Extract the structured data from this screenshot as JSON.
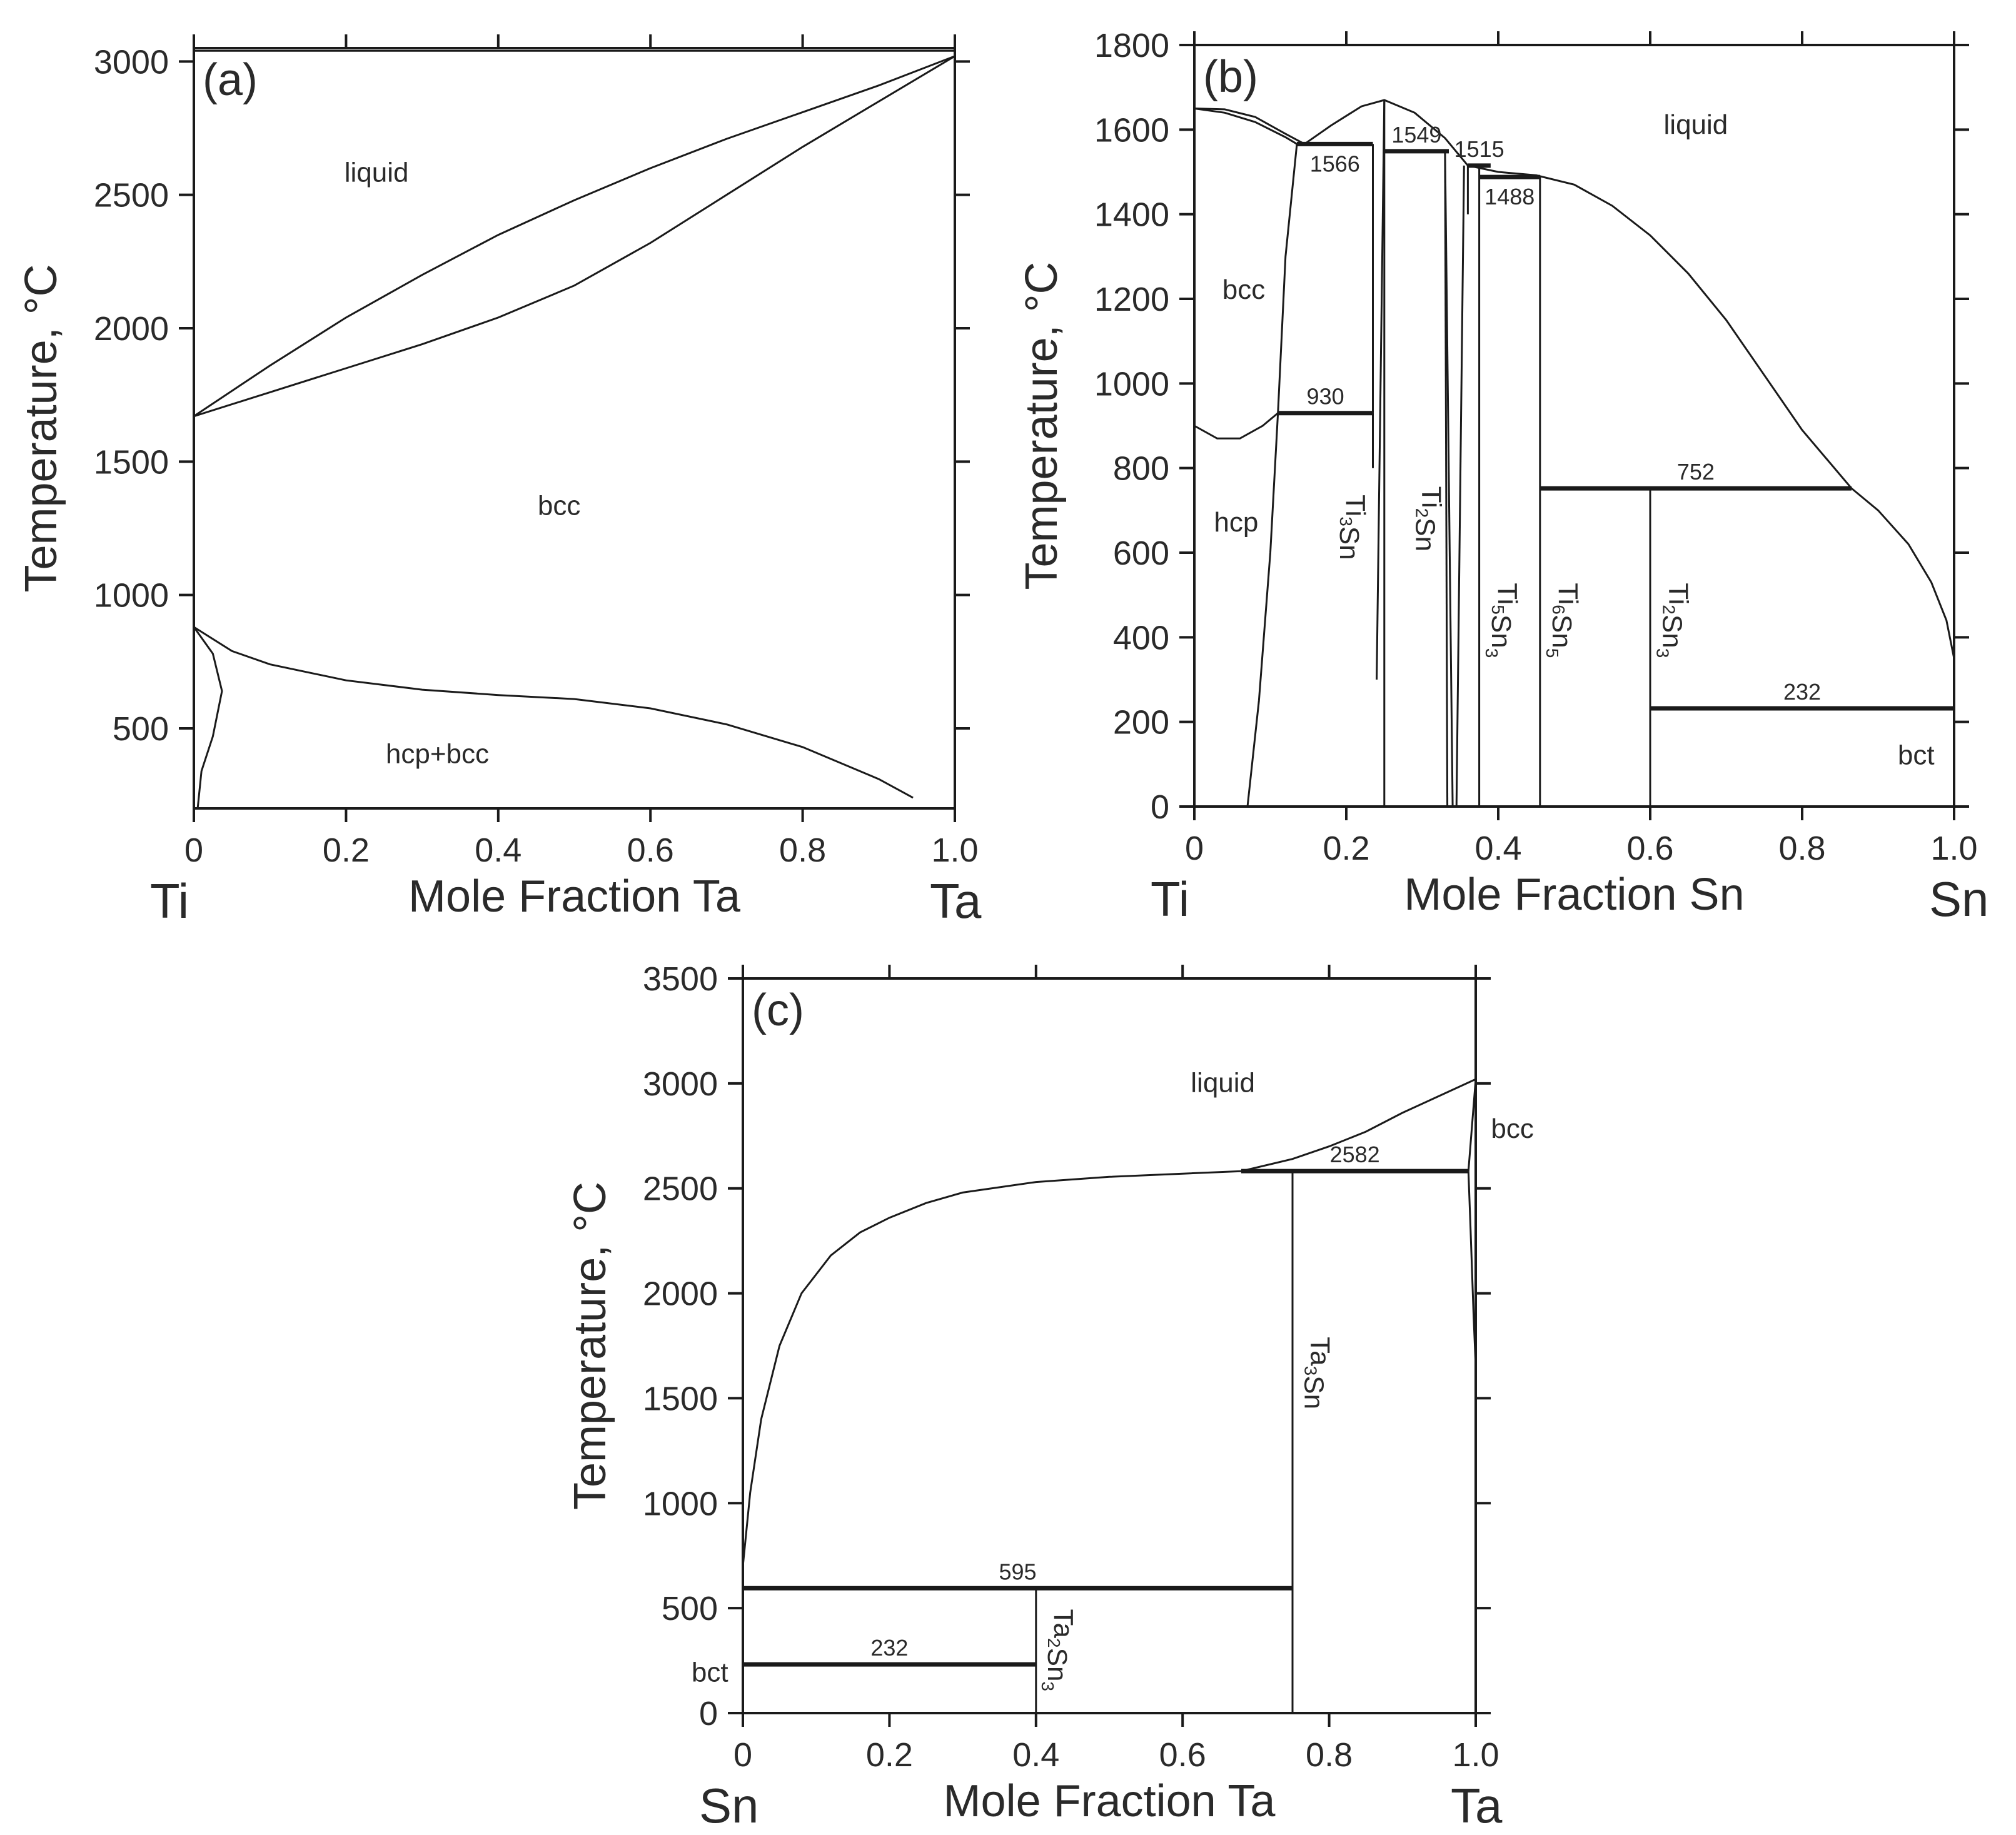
{
  "chart_data": [
    {
      "panel": "(a)",
      "type": "line",
      "xlabel": "Mole Fraction Ta",
      "ylabel": "Temperature, °C",
      "xlim": [
        0,
        1
      ],
      "ylim": [
        200,
        3050
      ],
      "x_ticks": [
        "0",
        "0.2",
        "0.4",
        "0.6",
        "0.8",
        "1.0"
      ],
      "y_ticks": [
        "500",
        "1000",
        "1500",
        "2000",
        "2500",
        "3000"
      ],
      "left_element": "Ti",
      "right_element": "Ta",
      "phase_labels": [
        {
          "text": "liquid",
          "x": 0.24,
          "y": 2550
        },
        {
          "text": "bcc",
          "x": 0.48,
          "y": 1300
        },
        {
          "text": "hcp+bcc",
          "x": 0.32,
          "y": 370
        }
      ],
      "isotherms": [],
      "boundaries": [
        {
          "points": [
            [
              0,
              1670
            ],
            [
              0.1,
              1860
            ],
            [
              0.2,
              2040
            ],
            [
              0.3,
              2200
            ],
            [
              0.4,
              2350
            ],
            [
              0.5,
              2480
            ],
            [
              0.6,
              2600
            ],
            [
              0.7,
              2710
            ],
            [
              0.8,
              2810
            ],
            [
              0.9,
              2910
            ],
            [
              1.0,
              3020
            ]
          ]
        },
        {
          "points": [
            [
              0,
              1670
            ],
            [
              0.1,
              1760
            ],
            [
              0.2,
              1850
            ],
            [
              0.3,
              1940
            ],
            [
              0.4,
              2040
            ],
            [
              0.5,
              2160
            ],
            [
              0.6,
              2320
            ],
            [
              0.7,
              2500
            ],
            [
              0.8,
              2680
            ],
            [
              0.9,
              2850
            ],
            [
              1.0,
              3020
            ]
          ]
        },
        {
          "points": [
            [
              0,
              880
            ],
            [
              0.05,
              790
            ],
            [
              0.1,
              740
            ],
            [
              0.2,
              680
            ],
            [
              0.3,
              645
            ],
            [
              0.4,
              625
            ],
            [
              0.5,
              610
            ],
            [
              0.6,
              575
            ],
            [
              0.7,
              515
            ],
            [
              0.8,
              430
            ],
            [
              0.9,
              310
            ],
            [
              0.945,
              240
            ]
          ]
        },
        {
          "points": [
            [
              0,
              880
            ],
            [
              0.025,
              780
            ],
            [
              0.037,
              640
            ],
            [
              0.025,
              470
            ],
            [
              0.01,
              340
            ],
            [
              0.005,
              200
            ]
          ]
        },
        {
          "points": [
            [
              0,
              3040
            ],
            [
              1.0,
              3040
            ]
          ]
        }
      ]
    },
    {
      "panel": "(b)",
      "type": "line",
      "xlabel": "Mole Fraction Sn",
      "ylabel": "Temperature, °C",
      "xlim": [
        0,
        1
      ],
      "ylim": [
        0,
        1800
      ],
      "x_ticks": [
        "0",
        "0.2",
        "0.4",
        "0.6",
        "0.8",
        "1.0"
      ],
      "y_ticks": [
        "0",
        "200",
        "400",
        "600",
        "800",
        "1000",
        "1200",
        "1400",
        "1600",
        "1800"
      ],
      "left_element": "Ti",
      "right_element": "Sn",
      "phase_labels": [
        {
          "text": "liquid",
          "x": 0.66,
          "y": 1590
        },
        {
          "text": "bcc",
          "x": 0.065,
          "y": 1200
        },
        {
          "text": "hcp",
          "x": 0.055,
          "y": 650
        },
        {
          "text": "bct",
          "x": 0.95,
          "y": 100
        }
      ],
      "compounds": [
        {
          "name": "Ti",
          "sub1": "3",
          "name2": "Sn",
          "sub2": "",
          "x": 0.2,
          "y": 660
        },
        {
          "name": "Ti",
          "sub1": "2",
          "name2": "Sn",
          "sub2": "",
          "x": 0.3,
          "y": 680
        },
        {
          "name": "Ti",
          "sub1": "5",
          "name2": "Sn",
          "sub2": "3",
          "x": 0.4,
          "y": 440
        },
        {
          "name": "Ti",
          "sub1": "6",
          "name2": "Sn",
          "sub2": "5",
          "x": 0.48,
          "y": 440
        },
        {
          "name": "Ti",
          "sub1": "2",
          "name2": "Sn",
          "sub2": "3",
          "x": 0.625,
          "y": 440
        }
      ],
      "isotherms": [
        {
          "value": "1566",
          "T": 1566,
          "x1": 0.135,
          "x2": 0.235
        },
        {
          "value": "1549",
          "T": 1549,
          "x1": 0.25,
          "x2": 0.335
        },
        {
          "value": "1515",
          "T": 1515,
          "x1": 0.36,
          "x2": 0.39
        },
        {
          "value": "1488",
          "T": 1488,
          "x1": 0.375,
          "x2": 0.455
        },
        {
          "value": "930",
          "T": 930,
          "x1": 0.11,
          "x2": 0.235
        },
        {
          "value": "752",
          "T": 752,
          "x1": 0.455,
          "x2": 0.865
        },
        {
          "value": "232",
          "T": 232,
          "x1": 0.6,
          "x2": 1.0
        }
      ],
      "boundaries": [
        {
          "points": [
            [
              0,
              1650
            ],
            [
              0.04,
              1648
            ],
            [
              0.08,
              1630
            ],
            [
              0.12,
              1590
            ],
            [
              0.145,
              1566
            ]
          ]
        },
        {
          "points": [
            [
              0,
              1650
            ],
            [
              0.04,
              1640
            ],
            [
              0.08,
              1618
            ],
            [
              0.12,
              1582
            ],
            [
              0.135,
              1566
            ]
          ]
        },
        {
          "points": [
            [
              0.145,
              1566
            ],
            [
              0.18,
              1610
            ],
            [
              0.22,
              1655
            ],
            [
              0.25,
              1670
            ],
            [
              0.29,
              1640
            ],
            [
              0.33,
              1580
            ],
            [
              0.36,
              1515
            ]
          ]
        },
        {
          "points": [
            [
              0.36,
              1515
            ],
            [
              0.4,
              1500
            ],
            [
              0.45,
              1492
            ],
            [
              0.5,
              1470
            ],
            [
              0.55,
              1420
            ],
            [
              0.6,
              1350
            ],
            [
              0.65,
              1260
            ],
            [
              0.7,
              1150
            ],
            [
              0.75,
              1020
            ],
            [
              0.8,
              890
            ],
            [
              0.865,
              752
            ],
            [
              0.9,
              700
            ],
            [
              0.94,
              620
            ],
            [
              0.97,
              530
            ],
            [
              0.99,
              440
            ],
            [
              1.0,
              350
            ]
          ]
        },
        {
          "points": [
            [
              0.135,
              1566
            ],
            [
              0.12,
              1300
            ],
            [
              0.11,
              930
            ]
          ]
        },
        {
          "points": [
            [
              0.11,
              930
            ],
            [
              0.1,
              600
            ],
            [
              0.085,
              250
            ],
            [
              0.07,
              0
            ]
          ]
        },
        {
          "points": [
            [
              0,
              900
            ],
            [
              0.03,
              870
            ],
            [
              0.06,
              870
            ],
            [
              0.09,
              900
            ],
            [
              0.11,
              930
            ]
          ]
        },
        {
          "points": [
            [
              0.235,
              1566
            ],
            [
              0.235,
              930
            ]
          ]
        },
        {
          "points": [
            [
              0.235,
              930
            ],
            [
              0.235,
              800
            ]
          ]
        },
        {
          "points": [
            [
              0.25,
              1670
            ],
            [
              0.24,
              300
            ]
          ]
        },
        {
          "points": [
            [
              0.25,
              1670
            ],
            [
              0.25,
              0
            ]
          ]
        },
        {
          "points": [
            [
              0.33,
              1549
            ],
            [
              0.333,
              0
            ]
          ]
        },
        {
          "points": [
            [
              0.33,
              1549
            ],
            [
              0.34,
              0
            ]
          ]
        },
        {
          "points": [
            [
              0.355,
              1515
            ],
            [
              0.345,
              0
            ]
          ]
        },
        {
          "points": [
            [
              0.36,
              1515
            ],
            [
              0.36,
              1400
            ]
          ]
        },
        {
          "points": [
            [
              0.375,
              1515
            ],
            [
              0.375,
              0
            ]
          ]
        },
        {
          "points": [
            [
              0.455,
              1488
            ],
            [
              0.455,
              0
            ]
          ]
        },
        {
          "points": [
            [
              0.6,
              752
            ],
            [
              0.6,
              0
            ]
          ]
        },
        {
          "points": [
            [
              1.0,
              400
            ],
            [
              1.0,
              0
            ]
          ]
        }
      ]
    },
    {
      "panel": "(c)",
      "type": "line",
      "xlabel": "Mole Fraction Ta",
      "ylabel": "Temperature, °C",
      "xlim": [
        0,
        1
      ],
      "ylim": [
        0,
        3500
      ],
      "x_ticks": [
        "0",
        "0.2",
        "0.4",
        "0.6",
        "0.8",
        "1.0"
      ],
      "y_ticks": [
        "0",
        "500",
        "1000",
        "1500",
        "2000",
        "2500",
        "3000",
        "3500"
      ],
      "left_element": "Sn",
      "right_element": "Ta",
      "phase_labels": [
        {
          "text": "liquid",
          "x": 0.655,
          "y": 2960
        },
        {
          "text": "bcc",
          "x": 1.05,
          "y": 2740
        },
        {
          "text": "bct",
          "x": -0.045,
          "y": 150
        }
      ],
      "compounds": [
        {
          "name": "Ta",
          "sub1": "3",
          "name2": "Sn",
          "sub2": "",
          "x": 0.775,
          "y": 1620
        },
        {
          "name": "Ta",
          "sub1": "2",
          "name2": "Sn",
          "sub2": "3",
          "x": 0.425,
          "y": 300
        }
      ],
      "isotherms": [
        {
          "value": "2582",
          "T": 2582,
          "x1": 0.68,
          "x2": 0.99
        },
        {
          "value": "595",
          "T": 595,
          "x1": 0.0,
          "x2": 0.75
        },
        {
          "value": "232",
          "T": 232,
          "x1": 0.0,
          "x2": 0.4
        }
      ],
      "boundaries": [
        {
          "points": [
            [
              0,
              700
            ],
            [
              0.01,
              1050
            ],
            [
              0.025,
              1400
            ],
            [
              0.05,
              1750
            ],
            [
              0.08,
              2000
            ],
            [
              0.12,
              2180
            ],
            [
              0.16,
              2290
            ],
            [
              0.2,
              2360
            ],
            [
              0.25,
              2430
            ],
            [
              0.3,
              2480
            ],
            [
              0.4,
              2530
            ],
            [
              0.5,
              2555
            ],
            [
              0.6,
              2570
            ],
            [
              0.68,
              2582
            ]
          ]
        },
        {
          "points": [
            [
              0.68,
              2582
            ],
            [
              0.75,
              2640
            ],
            [
              0.8,
              2700
            ],
            [
              0.85,
              2770
            ],
            [
              0.9,
              2860
            ],
            [
              0.95,
              2940
            ],
            [
              1.0,
              3020
            ]
          ]
        },
        {
          "points": [
            [
              0.99,
              2582
            ],
            [
              0.995,
              2800
            ],
            [
              1.0,
              3020
            ]
          ]
        },
        {
          "points": [
            [
              0.99,
              2582
            ],
            [
              0.993,
              2300
            ],
            [
              0.997,
              1900
            ],
            [
              1.0,
              1650
            ]
          ]
        },
        {
          "points": [
            [
              0.75,
              2582
            ],
            [
              0.75,
              0
            ]
          ]
        },
        {
          "points": [
            [
              0.4,
              595
            ],
            [
              0.4,
              0
            ]
          ]
        }
      ]
    }
  ]
}
